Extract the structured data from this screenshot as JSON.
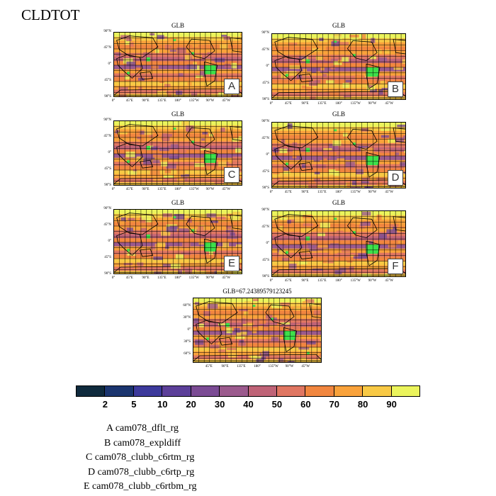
{
  "page": {
    "title": "CLDTOT"
  },
  "panels": [
    {
      "title": "GLB",
      "letter": "A"
    },
    {
      "title": "GLB",
      "letter": "B"
    },
    {
      "title": "GLB",
      "letter": "C"
    },
    {
      "title": "GLB",
      "letter": "D"
    },
    {
      "title": "GLB",
      "letter": "E"
    },
    {
      "title": "GLB",
      "letter": "F"
    },
    {
      "title": "GLB=67.24389579123245",
      "letter": ""
    }
  ],
  "axes": {
    "lat_labels": [
      "90°N",
      "45°N",
      "0°",
      "45°S",
      "90°S"
    ],
    "lon_labels": [
      "0°",
      "45°E",
      "90°E",
      "135°E",
      "180°",
      "135°W",
      "90°W",
      "45°W"
    ],
    "bottom_lat_labels": [
      "60°N",
      "30°N",
      "0°",
      "30°S",
      "60°S"
    ],
    "bottom_lon_labels": [
      "45°E",
      "90°E",
      "135°E",
      "180°",
      "135°W",
      "90°W",
      "45°W"
    ]
  },
  "colorbar": {
    "colors": [
      "#0f2a3d",
      "#1b356f",
      "#3d3a9c",
      "#5c3f99",
      "#7b4b94",
      "#9b5a8d",
      "#bf6377",
      "#e07662",
      "#f1863f",
      "#f9a23b",
      "#f8c945",
      "#ebf45c"
    ],
    "tick_labels": [
      "2",
      "5",
      "10",
      "20",
      "30",
      "40",
      "50",
      "60",
      "70",
      "80",
      "90"
    ]
  },
  "legend": [
    "A  cam078_dflt_rg",
    "B  cam078_expldiff",
    "C  cam078_clubb_c6rtm_rg",
    "D  cam078_clubb_c6rtp_rg",
    "E  cam078_clubb_c6rtbm_rg"
  ]
}
